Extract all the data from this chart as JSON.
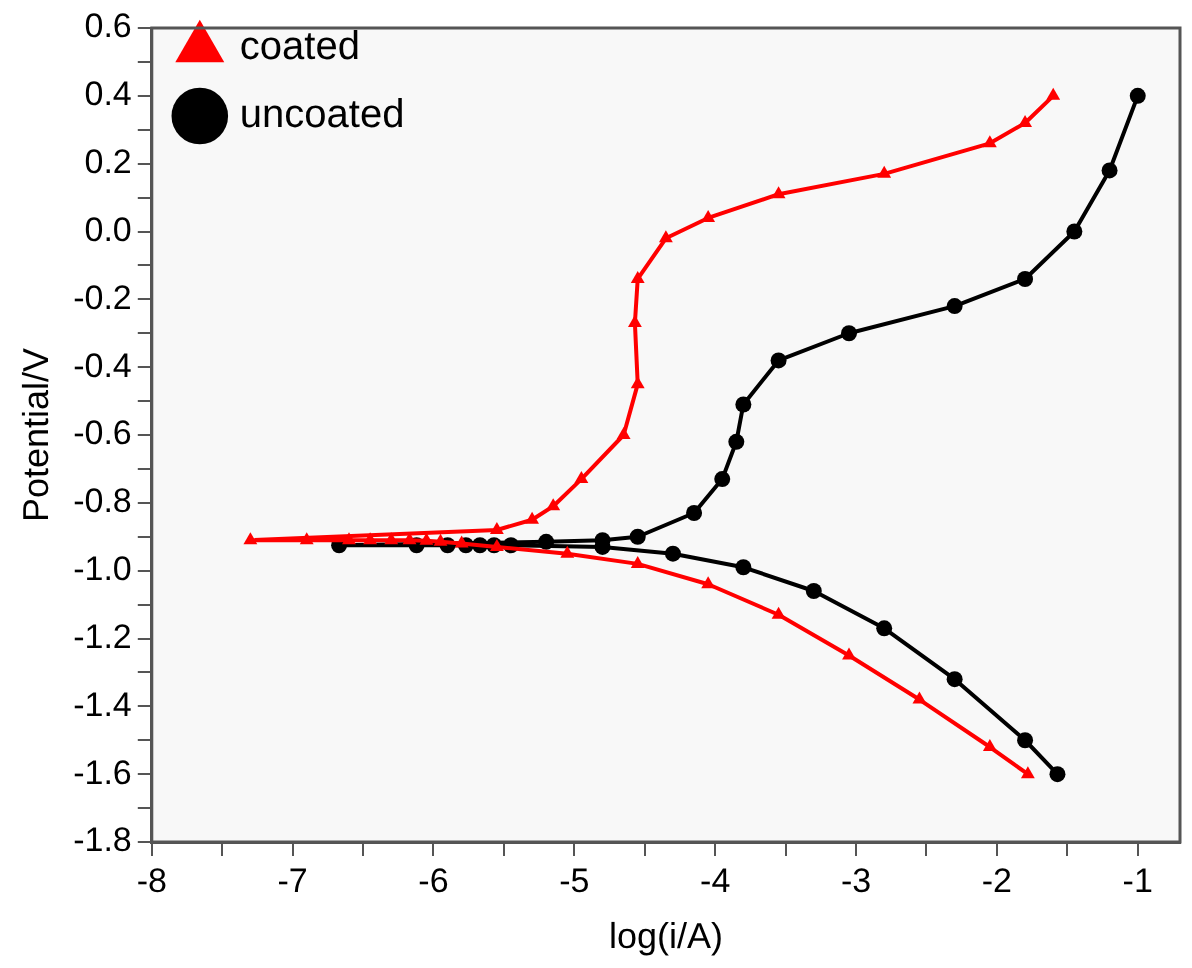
{
  "chart_data": {
    "type": "line",
    "xlabel": "log(i/A)",
    "ylabel": "Potential/V",
    "xlim": [
      -8,
      -0.7
    ],
    "ylim": [
      -1.8,
      0.6
    ],
    "xticks": [
      -8,
      {
        "value": -7.5,
        "label": null
      },
      -7,
      {
        "value": -6.5,
        "label": null
      },
      -6,
      {
        "value": -5.5,
        "label": null
      },
      -5,
      {
        "value": -4.5,
        "label": null
      },
      -4,
      {
        "value": -3.5,
        "label": null
      },
      -3,
      {
        "value": -2.5,
        "label": null
      },
      -2,
      {
        "value": -1.5,
        "label": null
      },
      -1
    ],
    "yticks": [
      {
        "value": -1.8,
        "label": "-1.8"
      },
      {
        "value": -1.7,
        "label": null
      },
      {
        "value": -1.6,
        "label": "-1.6"
      },
      {
        "value": -1.5,
        "label": null
      },
      {
        "value": -1.4,
        "label": "-1.4"
      },
      {
        "value": -1.3,
        "label": null
      },
      {
        "value": -1.2,
        "label": "-1.2"
      },
      {
        "value": -1.1,
        "label": null
      },
      {
        "value": -1.0,
        "label": "-1.0"
      },
      {
        "value": -0.9,
        "label": null
      },
      {
        "value": -0.8,
        "label": "-0.8"
      },
      {
        "value": -0.7,
        "label": null
      },
      {
        "value": -0.6,
        "label": "-0.6"
      },
      {
        "value": -0.5,
        "label": null
      },
      {
        "value": -0.4,
        "label": "-0.4"
      },
      {
        "value": -0.3,
        "label": null
      },
      {
        "value": -0.2,
        "label": "-0.2"
      },
      {
        "value": -0.1,
        "label": null
      },
      {
        "value": 0,
        "label": "0.0"
      },
      {
        "value": 0.1,
        "label": null
      },
      {
        "value": 0.2,
        "label": "0.2"
      },
      {
        "value": 0.3,
        "label": null
      },
      {
        "value": 0.4,
        "label": "0.4"
      },
      {
        "value": 0.5,
        "label": null
      },
      {
        "value": 0.6,
        "label": "0.6"
      }
    ],
    "legend": "top left",
    "grid": false,
    "line_style": "solid",
    "series": [
      {
        "name": "coated",
        "color": "#ff0000",
        "marker": "triangle",
        "x": [
          -1.78,
          -2.05,
          -2.55,
          -3.05,
          -3.55,
          -4.05,
          -4.55,
          -5.05,
          -5.55,
          -5.8,
          -5.95,
          -6.05,
          -6.17,
          -6.3,
          -6.45,
          -6.6,
          -6.9,
          -7.3,
          -5.55,
          -5.3,
          -5.15,
          -4.95,
          -4.65,
          -4.55,
          -4.57,
          -4.55,
          -4.35,
          -4.05,
          -3.55,
          -2.8,
          -2.05,
          -1.8,
          -1.6
        ],
        "values": [
          -1.6,
          -1.52,
          -1.38,
          -1.25,
          -1.13,
          -1.04,
          -0.98,
          -0.95,
          -0.93,
          -0.92,
          -0.915,
          -0.912,
          -0.91,
          -0.91,
          -0.91,
          -0.91,
          -0.91,
          -0.91,
          -0.88,
          -0.85,
          -0.81,
          -0.73,
          -0.6,
          -0.45,
          -0.27,
          -0.14,
          -0.02,
          0.04,
          0.11,
          0.17,
          0.26,
          0.32,
          0.4
        ]
      },
      {
        "name": "uncoated",
        "color": "#000000",
        "marker": "circle",
        "x": [
          -1.57,
          -1.8,
          -2.3,
          -2.8,
          -3.3,
          -3.8,
          -4.3,
          -4.8,
          -5.45,
          -5.57,
          -5.67,
          -5.77,
          -5.9,
          -6.12,
          -6.67,
          -5.2,
          -4.8,
          -4.55,
          -4.15,
          -3.95,
          -3.85,
          -3.8,
          -3.55,
          -3.05,
          -2.3,
          -1.8,
          -1.45,
          -1.2,
          -1.0
        ],
        "values": [
          -1.6,
          -1.5,
          -1.32,
          -1.17,
          -1.06,
          -0.99,
          -0.95,
          -0.93,
          -0.925,
          -0.925,
          -0.925,
          -0.925,
          -0.925,
          -0.925,
          -0.925,
          -0.915,
          -0.91,
          -0.9,
          -0.83,
          -0.73,
          -0.62,
          -0.51,
          -0.38,
          -0.3,
          -0.22,
          -0.14,
          0.0,
          0.18,
          0.4
        ]
      }
    ]
  }
}
